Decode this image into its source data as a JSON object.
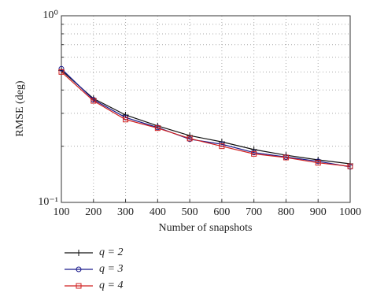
{
  "chart_data": {
    "type": "line",
    "x_label": "Number of snapshots",
    "y_label": "RMSE (deg)",
    "x": [
      100,
      200,
      300,
      400,
      500,
      600,
      700,
      800,
      900,
      1000
    ],
    "series": [
      {
        "name": "q = 2",
        "color": "#111111",
        "marker": "plus",
        "values": [
          0.51,
          0.36,
          0.294,
          0.257,
          0.228,
          0.211,
          0.192,
          0.179,
          0.169,
          0.161
        ]
      },
      {
        "name": "q = 3",
        "color": "#1a1a8c",
        "marker": "circle",
        "values": [
          0.52,
          0.355,
          0.285,
          0.252,
          0.218,
          0.205,
          0.185,
          0.175,
          0.166,
          0.155
        ]
      },
      {
        "name": "q = 4",
        "color": "#d02020",
        "marker": "square",
        "values": [
          0.5,
          0.35,
          0.278,
          0.25,
          0.22,
          0.2,
          0.182,
          0.174,
          0.163,
          0.156
        ]
      }
    ],
    "xlim": [
      100,
      1000
    ],
    "xticks": [
      100,
      200,
      300,
      400,
      500,
      600,
      700,
      800,
      900,
      1000
    ],
    "ylim": [
      0.1,
      1
    ],
    "ylog": true,
    "yticks": [
      {
        "value": 0.1,
        "label": "10⁻¹"
      },
      {
        "value": 1,
        "label": "10⁰"
      }
    ],
    "minor_yticks": [
      0.2,
      0.3,
      0.4,
      0.5,
      0.6,
      0.7,
      0.8,
      0.9
    ],
    "grid": true,
    "legend": "bottom-left"
  }
}
